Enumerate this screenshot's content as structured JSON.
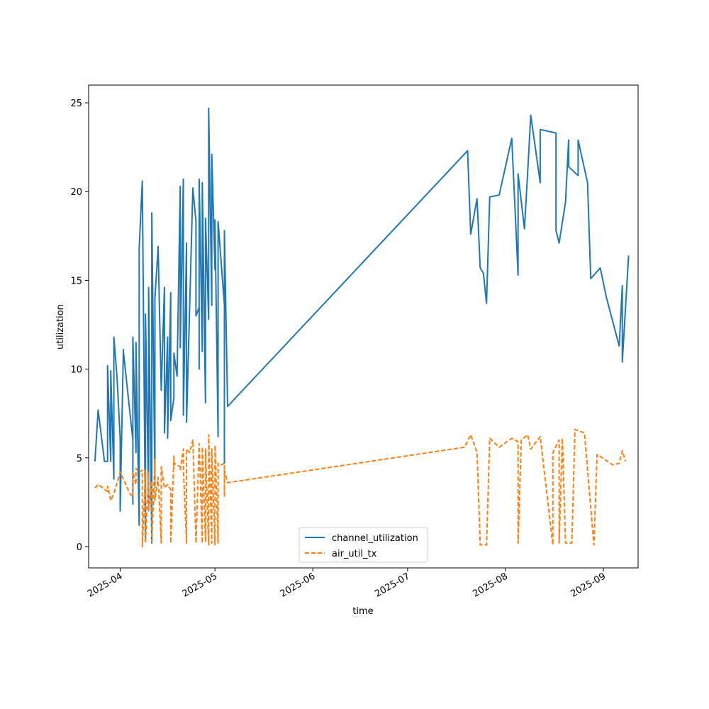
{
  "chart_data": {
    "type": "line",
    "xlabel": "time",
    "ylabel": "utilization",
    "x_ticks": [
      "2025-04",
      "2025-05",
      "2025-06",
      "2025-07",
      "2025-08",
      "2025-09"
    ],
    "y_ticks": [
      "0",
      "5",
      "10",
      "15",
      "20",
      "25"
    ],
    "xlim": [
      "2025-03-22",
      "2025-09-12"
    ],
    "ylim": [
      -1.2,
      26
    ],
    "grid": false,
    "legend_position": "bottom-center",
    "series": [
      {
        "name": "channel_utilization",
        "color": "#1f77b4",
        "style": "solid",
        "points": [
          [
            "2025-03-24",
            4.8
          ],
          [
            "2025-03-25",
            7.7
          ],
          [
            "2025-03-27",
            4.8
          ],
          [
            "2025-03-28",
            4.8
          ],
          [
            "2025-03-28",
            10.2
          ],
          [
            "2025-03-29",
            4.8
          ],
          [
            "2025-03-29",
            9.9
          ],
          [
            "2025-03-30",
            3.8
          ],
          [
            "2025-03-30",
            11.8
          ],
          [
            "2025-03-31",
            9.5
          ],
          [
            "2025-04-01",
            6.1
          ],
          [
            "2025-04-01",
            2.0
          ],
          [
            "2025-04-02",
            11.1
          ],
          [
            "2025-04-02",
            11.0
          ],
          [
            "2025-04-05",
            6.0
          ],
          [
            "2025-04-05",
            2.4
          ],
          [
            "2025-04-05",
            11.8
          ],
          [
            "2025-04-06",
            5.3
          ],
          [
            "2025-04-06",
            11.5
          ],
          [
            "2025-04-07",
            1.2
          ],
          [
            "2025-04-07",
            16.8
          ],
          [
            "2025-04-08",
            20.6
          ],
          [
            "2025-04-09",
            0.4
          ],
          [
            "2025-04-09",
            13.1
          ],
          [
            "2025-04-10",
            2.5
          ],
          [
            "2025-04-10",
            14.6
          ],
          [
            "2025-04-11",
            0.2
          ],
          [
            "2025-04-11",
            18.8
          ],
          [
            "2025-04-12",
            3.5
          ],
          [
            "2025-04-12",
            14.0
          ],
          [
            "2025-04-13",
            16.9
          ],
          [
            "2025-04-14",
            8.8
          ],
          [
            "2025-04-15",
            14.6
          ],
          [
            "2025-04-15",
            6.4
          ],
          [
            "2025-04-16",
            11.8
          ],
          [
            "2025-04-16",
            6.1
          ],
          [
            "2025-04-17",
            14.3
          ],
          [
            "2025-04-17",
            7.1
          ],
          [
            "2025-04-18",
            8.4
          ],
          [
            "2025-04-18",
            10.9
          ],
          [
            "2025-04-19",
            9.6
          ],
          [
            "2025-04-20",
            20.3
          ],
          [
            "2025-04-20",
            11.2
          ],
          [
            "2025-04-21",
            20.7
          ],
          [
            "2025-04-21",
            7.4
          ],
          [
            "2025-04-22",
            17.1
          ],
          [
            "2025-04-22",
            7.0
          ],
          [
            "2025-04-24",
            20.2
          ],
          [
            "2025-04-25",
            18.3
          ],
          [
            "2025-04-25",
            13.0
          ],
          [
            "2025-04-26",
            13.5
          ],
          [
            "2025-04-26",
            10.0
          ],
          [
            "2025-04-26",
            20.7
          ],
          [
            "2025-04-27",
            11.0
          ],
          [
            "2025-04-27",
            20.5
          ],
          [
            "2025-04-28",
            8.1
          ],
          [
            "2025-04-28",
            18.5
          ],
          [
            "2025-04-29",
            12.8
          ],
          [
            "2025-04-29",
            24.7
          ],
          [
            "2025-04-30",
            13.6
          ],
          [
            "2025-04-30",
            22.1
          ],
          [
            "2025-05-01",
            15.6
          ],
          [
            "2025-05-01",
            18.4
          ],
          [
            "2025-05-02",
            6.2
          ],
          [
            "2025-05-02",
            18.3
          ],
          [
            "2025-05-04",
            13.6
          ],
          [
            "2025-05-04",
            4.7
          ],
          [
            "2025-05-04",
            17.8
          ],
          [
            "2025-05-05",
            7.9
          ],
          [
            "2025-07-20",
            22.3
          ],
          [
            "2025-07-21",
            17.6
          ],
          [
            "2025-07-23",
            19.6
          ],
          [
            "2025-07-24",
            15.7
          ],
          [
            "2025-07-25",
            15.4
          ],
          [
            "2025-07-26",
            13.7
          ],
          [
            "2025-07-27",
            19.7
          ],
          [
            "2025-07-30",
            19.8
          ],
          [
            "2025-08-03",
            23.0
          ],
          [
            "2025-08-05",
            15.3
          ],
          [
            "2025-08-05",
            21.0
          ],
          [
            "2025-08-07",
            17.9
          ],
          [
            "2025-08-08",
            21.0
          ],
          [
            "2025-08-09",
            24.3
          ],
          [
            "2025-08-12",
            20.5
          ],
          [
            "2025-08-12",
            23.5
          ],
          [
            "2025-08-17",
            23.3
          ],
          [
            "2025-08-17",
            17.8
          ],
          [
            "2025-08-18",
            17.1
          ],
          [
            "2025-08-20",
            19.4
          ],
          [
            "2025-08-21",
            22.9
          ],
          [
            "2025-08-21",
            21.4
          ],
          [
            "2025-08-24",
            20.9
          ],
          [
            "2025-08-24",
            22.9
          ],
          [
            "2025-08-27",
            20.5
          ],
          [
            "2025-08-28",
            15.1
          ],
          [
            "2025-08-31",
            15.7
          ],
          [
            "2025-09-02",
            14.0
          ],
          [
            "2025-09-06",
            11.3
          ],
          [
            "2025-09-07",
            14.7
          ],
          [
            "2025-09-07",
            10.4
          ],
          [
            "2025-09-09",
            16.4
          ]
        ]
      },
      {
        "name": "air_util_tx",
        "color": "#ff7f0e",
        "style": "dashed",
        "points": [
          [
            "2025-03-24",
            3.3
          ],
          [
            "2025-03-25",
            3.5
          ],
          [
            "2025-03-28",
            3.1
          ],
          [
            "2025-03-28",
            3.4
          ],
          [
            "2025-03-29",
            2.6
          ],
          [
            "2025-03-30",
            3.0
          ],
          [
            "2025-04-01",
            4.2
          ],
          [
            "2025-04-02",
            3.8
          ],
          [
            "2025-04-04",
            3.0
          ],
          [
            "2025-04-05",
            2.8
          ],
          [
            "2025-04-05",
            4.2
          ],
          [
            "2025-04-06",
            3.5
          ],
          [
            "2025-04-06",
            4.4
          ],
          [
            "2025-04-07",
            4.2
          ],
          [
            "2025-04-08",
            4.3
          ],
          [
            "2025-04-08",
            0.0
          ],
          [
            "2025-04-09",
            4.3
          ],
          [
            "2025-04-09",
            0.2
          ],
          [
            "2025-04-10",
            4.2
          ],
          [
            "2025-04-10",
            2.0
          ],
          [
            "2025-04-11",
            3.7
          ],
          [
            "2025-04-11",
            0.3
          ],
          [
            "2025-04-12",
            4.9
          ],
          [
            "2025-04-12",
            2.6
          ],
          [
            "2025-04-13",
            3.9
          ],
          [
            "2025-04-14",
            0.2
          ],
          [
            "2025-04-14",
            4.5
          ],
          [
            "2025-04-15",
            3.3
          ],
          [
            "2025-04-16",
            3.5
          ],
          [
            "2025-04-17",
            3.2
          ],
          [
            "2025-04-17",
            0.2
          ],
          [
            "2025-04-18",
            5.1
          ],
          [
            "2025-04-18",
            4.4
          ],
          [
            "2025-04-18",
            4.7
          ],
          [
            "2025-04-20",
            4.5
          ],
          [
            "2025-04-20",
            4.3
          ],
          [
            "2025-04-21",
            5.5
          ],
          [
            "2025-04-21",
            4.4
          ],
          [
            "2025-04-22",
            0.2
          ],
          [
            "2025-04-22",
            5.5
          ],
          [
            "2025-04-23",
            5.3
          ],
          [
            "2025-04-24",
            6.0
          ],
          [
            "2025-04-25",
            0.2
          ],
          [
            "2025-04-26",
            5.8
          ],
          [
            "2025-04-27",
            0.2
          ],
          [
            "2025-04-27",
            5.6
          ],
          [
            "2025-04-28",
            0.3
          ],
          [
            "2025-04-28",
            5.5
          ],
          [
            "2025-04-29",
            0.1
          ],
          [
            "2025-04-29",
            6.3
          ],
          [
            "2025-04-30",
            0.2
          ],
          [
            "2025-04-30",
            5.5
          ],
          [
            "2025-05-01",
            0.1
          ],
          [
            "2025-05-01",
            5.7
          ],
          [
            "2025-05-02",
            0.2
          ],
          [
            "2025-05-02",
            4.7
          ],
          [
            "2025-05-03",
            4.6
          ],
          [
            "2025-05-04",
            4.7
          ],
          [
            "2025-05-04",
            2.8
          ],
          [
            "2025-05-04",
            4.3
          ],
          [
            "2025-05-05",
            3.6
          ],
          [
            "2025-07-19",
            5.6
          ],
          [
            "2025-07-21",
            6.3
          ],
          [
            "2025-07-23",
            5.3
          ],
          [
            "2025-07-24",
            0.1
          ],
          [
            "2025-07-26",
            0.1
          ],
          [
            "2025-07-27",
            6.1
          ],
          [
            "2025-07-30",
            5.6
          ],
          [
            "2025-08-03",
            6.1
          ],
          [
            "2025-08-05",
            5.9
          ],
          [
            "2025-08-05",
            0.2
          ],
          [
            "2025-08-06",
            6.0
          ],
          [
            "2025-08-08",
            6.3
          ],
          [
            "2025-08-09",
            5.5
          ],
          [
            "2025-08-12",
            6.2
          ],
          [
            "2025-08-16",
            0.1
          ],
          [
            "2025-08-16",
            5.3
          ],
          [
            "2025-08-18",
            6.0
          ],
          [
            "2025-08-18",
            0.2
          ],
          [
            "2025-08-19",
            6.1
          ],
          [
            "2025-08-20",
            0.2
          ],
          [
            "2025-08-22",
            0.2
          ],
          [
            "2025-08-23",
            6.6
          ],
          [
            "2025-08-26",
            6.4
          ],
          [
            "2025-08-29",
            0.1
          ],
          [
            "2025-08-30",
            5.2
          ],
          [
            "2025-09-04",
            4.6
          ],
          [
            "2025-09-06",
            4.7
          ],
          [
            "2025-09-07",
            5.4
          ],
          [
            "2025-09-08",
            4.8
          ]
        ]
      }
    ]
  }
}
